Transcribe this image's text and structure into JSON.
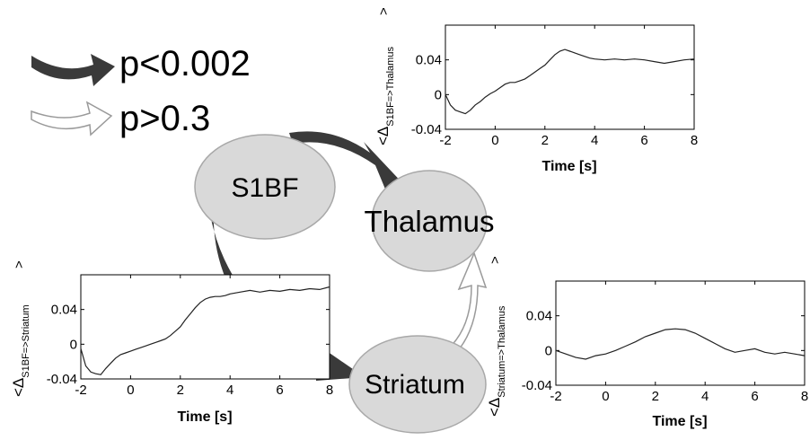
{
  "legend": {
    "significant_label": "p<0.002",
    "nonsignificant_label": "p>0.3"
  },
  "nodes": {
    "s1bf": "S1BF",
    "thalamus": "Thalamus",
    "striatum": "Striatum"
  },
  "colors": {
    "dark_arrow": "#3a3a3a",
    "node_fill": "#d9d9d9",
    "node_stroke": "#a8a8a8",
    "light_arrow": "#ffffff",
    "trace": "#222222"
  },
  "chart_data": [
    {
      "type": "line",
      "id": "s1bf-thalamus",
      "ylabel_main": "<Δ",
      "ylabel_sub": "S1BF=>Thalamus",
      "ylabel_end": ">",
      "xlabel": "Time [s]",
      "xlim": [
        -2,
        8
      ],
      "ylim": [
        -0.04,
        0.08
      ],
      "xticks": [
        -2,
        0,
        2,
        4,
        6,
        8
      ],
      "yticks": [
        -0.04,
        0,
        0.04
      ],
      "ytick_labels": [
        "-0.04",
        "0",
        "0.04"
      ],
      "x": [
        -2,
        -1.8,
        -1.6,
        -1.4,
        -1.2,
        -1.0,
        -0.8,
        -0.6,
        -0.4,
        -0.2,
        0,
        0.2,
        0.4,
        0.6,
        0.8,
        1.0,
        1.2,
        1.4,
        1.6,
        1.8,
        2.0,
        2.2,
        2.4,
        2.6,
        2.8,
        3.0,
        3.2,
        3.4,
        3.6,
        3.8,
        4.0,
        4.4,
        4.8,
        5.2,
        5.6,
        6.0,
        6.4,
        6.8,
        7.2,
        7.6,
        8.0
      ],
      "y": [
        0.0,
        -0.012,
        -0.018,
        -0.02,
        -0.022,
        -0.018,
        -0.012,
        -0.008,
        -0.003,
        0.001,
        0.004,
        0.008,
        0.012,
        0.014,
        0.014,
        0.016,
        0.018,
        0.022,
        0.026,
        0.03,
        0.034,
        0.04,
        0.046,
        0.05,
        0.052,
        0.05,
        0.048,
        0.046,
        0.044,
        0.042,
        0.041,
        0.04,
        0.041,
        0.04,
        0.041,
        0.04,
        0.038,
        0.036,
        0.038,
        0.04,
        0.041
      ]
    },
    {
      "type": "line",
      "id": "s1bf-striatum",
      "ylabel_main": "<Δ",
      "ylabel_sub": "S1BF=>Striatum",
      "ylabel_end": ">",
      "xlabel": "Time [s]",
      "xlim": [
        -2,
        8
      ],
      "ylim": [
        -0.04,
        0.08
      ],
      "xticks": [
        -2,
        0,
        2,
        4,
        6,
        8
      ],
      "yticks": [
        -0.04,
        0,
        0.04
      ],
      "ytick_labels": [
        "-0.04",
        "0",
        "0.04"
      ],
      "x": [
        -2,
        -1.8,
        -1.6,
        -1.4,
        -1.2,
        -1.0,
        -0.8,
        -0.6,
        -0.4,
        -0.2,
        0,
        0.2,
        0.4,
        0.6,
        0.8,
        1.0,
        1.2,
        1.4,
        1.6,
        1.8,
        2.0,
        2.2,
        2.4,
        2.6,
        2.8,
        3.0,
        3.2,
        3.4,
        3.6,
        3.8,
        4.0,
        4.4,
        4.8,
        5.2,
        5.6,
        6.0,
        6.4,
        6.8,
        7.2,
        7.6,
        8.0
      ],
      "y": [
        -0.005,
        -0.025,
        -0.032,
        -0.034,
        -0.035,
        -0.028,
        -0.022,
        -0.016,
        -0.012,
        -0.01,
        -0.008,
        -0.006,
        -0.004,
        -0.002,
        0.0,
        0.002,
        0.004,
        0.006,
        0.01,
        0.015,
        0.02,
        0.028,
        0.035,
        0.042,
        0.048,
        0.052,
        0.054,
        0.055,
        0.055,
        0.056,
        0.058,
        0.06,
        0.062,
        0.06,
        0.062,
        0.061,
        0.063,
        0.062,
        0.064,
        0.063,
        0.066
      ]
    },
    {
      "type": "line",
      "id": "striatum-thalamus",
      "ylabel_main": "<Δ",
      "ylabel_sub": "Striatum=>Thalamus",
      "ylabel_end": ">",
      "xlabel": "Time [s]",
      "xlim": [
        -2,
        8
      ],
      "ylim": [
        -0.04,
        0.08
      ],
      "xticks": [
        -2,
        0,
        2,
        4,
        6,
        8
      ],
      "yticks": [
        -0.04,
        0,
        0.04
      ],
      "ytick_labels": [
        "-0.04",
        "0",
        "0.04"
      ],
      "x": [
        -2,
        -1.6,
        -1.2,
        -0.8,
        -0.4,
        0,
        0.4,
        0.8,
        1.2,
        1.6,
        2.0,
        2.4,
        2.8,
        3.2,
        3.6,
        4.0,
        4.4,
        4.8,
        5.2,
        5.6,
        6.0,
        6.4,
        6.8,
        7.2,
        7.6,
        8.0
      ],
      "y": [
        0.0,
        -0.004,
        -0.008,
        -0.01,
        -0.006,
        -0.004,
        0.0,
        0.005,
        0.01,
        0.016,
        0.02,
        0.024,
        0.025,
        0.024,
        0.02,
        0.014,
        0.008,
        0.002,
        -0.002,
        0.0,
        0.002,
        -0.002,
        -0.004,
        -0.002,
        -0.004,
        -0.006
      ]
    }
  ]
}
